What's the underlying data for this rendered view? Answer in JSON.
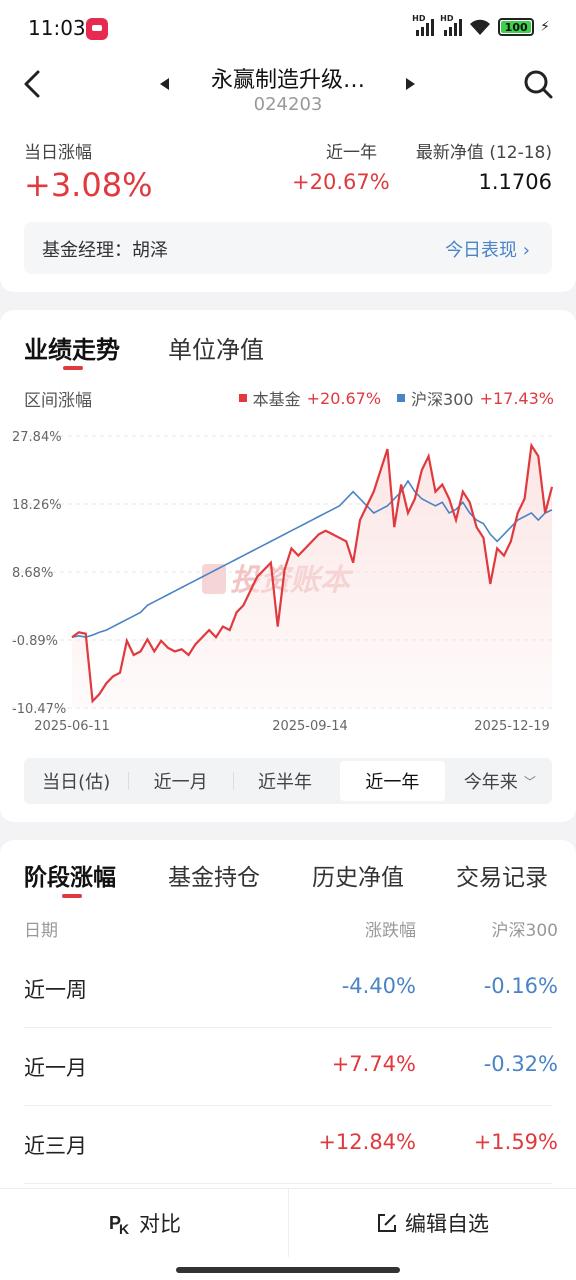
{
  "status": {
    "time": "11:03",
    "battery": "100",
    "hd1": "HD",
    "hd2": "HD"
  },
  "header": {
    "fund_name": "永赢制造升级…",
    "fund_code": "024203"
  },
  "summary": {
    "day_change_label": "当日涨幅",
    "day_change_value": "+3.08%",
    "year_label": "近一年",
    "year_value": "+20.67%",
    "nav_label": "最新净值 (12-18)",
    "nav_value": "1.1706",
    "manager_label": "基金经理：胡泽",
    "today_link": "今日表现",
    "today_link_chevron": "›"
  },
  "chart_tabs": {
    "performance": "业绩走势",
    "unit_nav": "单位净值"
  },
  "chart_legend": {
    "range_label": "区间涨幅",
    "fund_name": "本基金",
    "fund_value": "+20.67%",
    "index_name": "沪深300",
    "index_value": "+17.43%"
  },
  "colors": {
    "fund": "#e0393e",
    "index": "#4a84c6",
    "fund_fill": "#fbe3e2"
  },
  "watermark": "投资账本",
  "chart_data": {
    "type": "line",
    "xlabel": "",
    "ylabel": "",
    "y_ticks": [
      "27.84%",
      "18.26%",
      "8.68%",
      "-0.89%",
      "-10.47%"
    ],
    "ylim": [
      -10.47,
      27.84
    ],
    "x_ticks": [
      "2025-06-11",
      "2025-09-14",
      "2025-12-19"
    ],
    "series": [
      {
        "name": "本基金",
        "values": [
          -0.5,
          0.2,
          0.0,
          -9.5,
          -8.5,
          -7.0,
          -6.0,
          -5.5,
          -1.0,
          -3.0,
          -2.5,
          -0.8,
          -2.5,
          -1.0,
          -2.0,
          -2.5,
          -2.2,
          -3.0,
          -1.5,
          -0.5,
          0.5,
          -0.5,
          1.0,
          0.5,
          3.0,
          4.0,
          6.0,
          8.0,
          9.0,
          10.0,
          1.0,
          9.0,
          12.0,
          11.0,
          12.0,
          13.0,
          14.0,
          14.5,
          14.0,
          13.5,
          13.0,
          10.0,
          16.0,
          18.0,
          20.0,
          23.0,
          26.0,
          15.0,
          21.0,
          17.0,
          19.0,
          23.0,
          25.0,
          20.0,
          21.0,
          19.0,
          16.0,
          20.0,
          18.5,
          15.0,
          13.5,
          7.0,
          12.0,
          11.0,
          13.0,
          17.0,
          19.0,
          26.5,
          25.0,
          17.0,
          20.67
        ]
      },
      {
        "name": "沪深300",
        "values": [
          -0.5,
          -0.3,
          -0.5,
          -0.2,
          0.2,
          0.5,
          1.0,
          1.5,
          2.0,
          2.5,
          3.0,
          4.0,
          4.5,
          5.0,
          5.5,
          6.0,
          6.5,
          7.0,
          7.5,
          8.0,
          8.5,
          9.0,
          9.5,
          10.0,
          10.5,
          11.0,
          11.5,
          12.0,
          12.5,
          13.0,
          13.5,
          14.0,
          14.5,
          15.0,
          15.5,
          16.0,
          16.5,
          17.0,
          17.5,
          18.0,
          19.0,
          20.0,
          19.0,
          18.0,
          17.0,
          17.5,
          18.0,
          19.0,
          20.0,
          21.5,
          20.0,
          19.0,
          18.5,
          18.0,
          18.5,
          17.0,
          17.5,
          18.5,
          17.0,
          16.0,
          15.5,
          14.0,
          13.0,
          14.0,
          15.0,
          16.0,
          16.5,
          17.0,
          16.0,
          17.0,
          17.43
        ]
      }
    ]
  },
  "periods": [
    "当日(估)",
    "近一月",
    "近半年",
    "近一年",
    "今年来"
  ],
  "periods_active": "近一年",
  "stage_tabs": [
    "阶段涨幅",
    "基金持仓",
    "历史净值",
    "交易记录"
  ],
  "stage_columns": {
    "date": "日期",
    "change": "涨跌幅",
    "index": "沪深300"
  },
  "stage_rows": [
    {
      "label": "近一周",
      "change": "-4.40%",
      "index": "-0.16%"
    },
    {
      "label": "近一月",
      "change": "+7.74%",
      "index": "-0.32%"
    },
    {
      "label": "近三月",
      "change": "+12.84%",
      "index": "+1.59%"
    }
  ],
  "bottom": {
    "compare": "对比",
    "edit_watchlist": "编辑自选"
  }
}
